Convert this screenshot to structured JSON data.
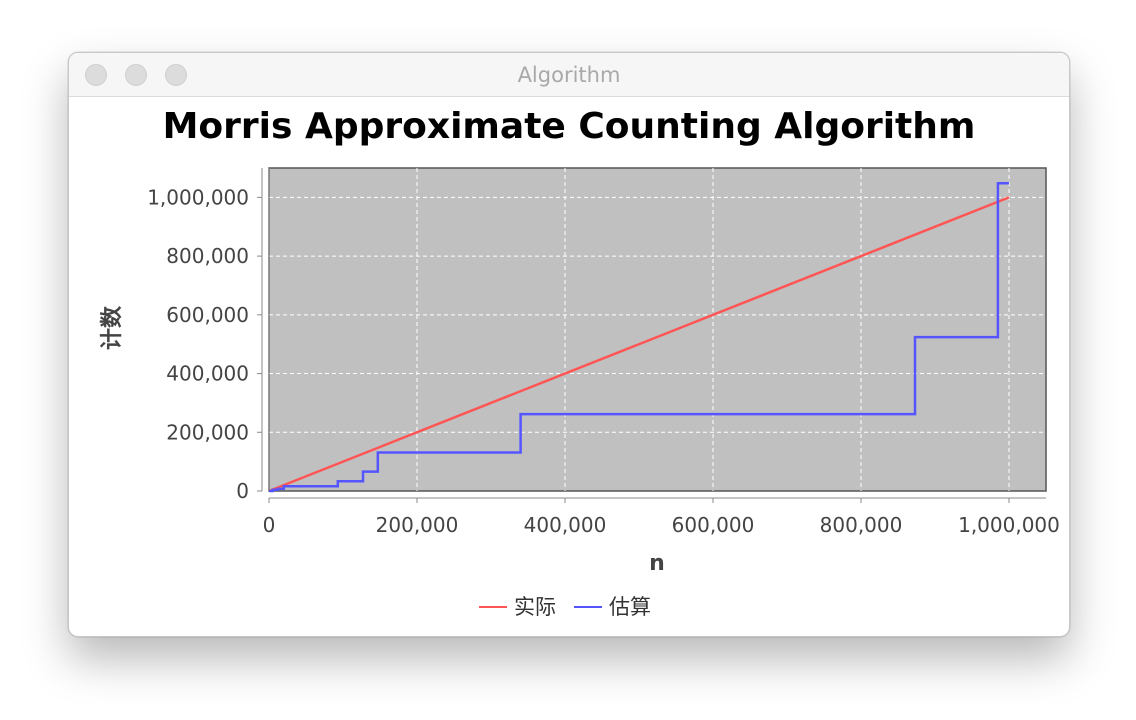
{
  "window": {
    "title": "Algorithm"
  },
  "colors": {
    "plot_background": "#c0c0c0",
    "gridline": "#ffffff",
    "series_actual": "#ff5555",
    "series_estimate": "#5555ff"
  },
  "chart_data": {
    "type": "line",
    "title": "Morris Approximate Counting Algorithm",
    "xlabel": "n",
    "ylabel": "计数",
    "xlim": [
      0,
      1050000
    ],
    "ylim": [
      0,
      1100000
    ],
    "x_ticks": [
      0,
      200000,
      400000,
      600000,
      800000,
      1000000
    ],
    "y_ticks": [
      0,
      200000,
      400000,
      600000,
      800000,
      1000000
    ],
    "x_tick_labels": [
      "0",
      "200,000",
      "400,000",
      "600,000",
      "800,000",
      "1,000,000"
    ],
    "y_tick_labels": [
      "0",
      "200,000",
      "400,000",
      "600,000",
      "800,000",
      "1,000,000"
    ],
    "grid": true,
    "legend_position": "bottom-center",
    "series": [
      {
        "name": "实际",
        "color": "#ff5555",
        "step": false,
        "x": [
          0,
          1000000
        ],
        "y": [
          0,
          1000000
        ]
      },
      {
        "name": "估算",
        "color": "#5555ff",
        "step": true,
        "x": [
          0,
          5000,
          12000,
          20000,
          93000,
          127000,
          147000,
          340000,
          873000,
          985000,
          1000000
        ],
        "y": [
          0,
          4000,
          8000,
          16000,
          33000,
          66000,
          131000,
          262000,
          524000,
          1048000,
          1048000
        ]
      }
    ]
  }
}
